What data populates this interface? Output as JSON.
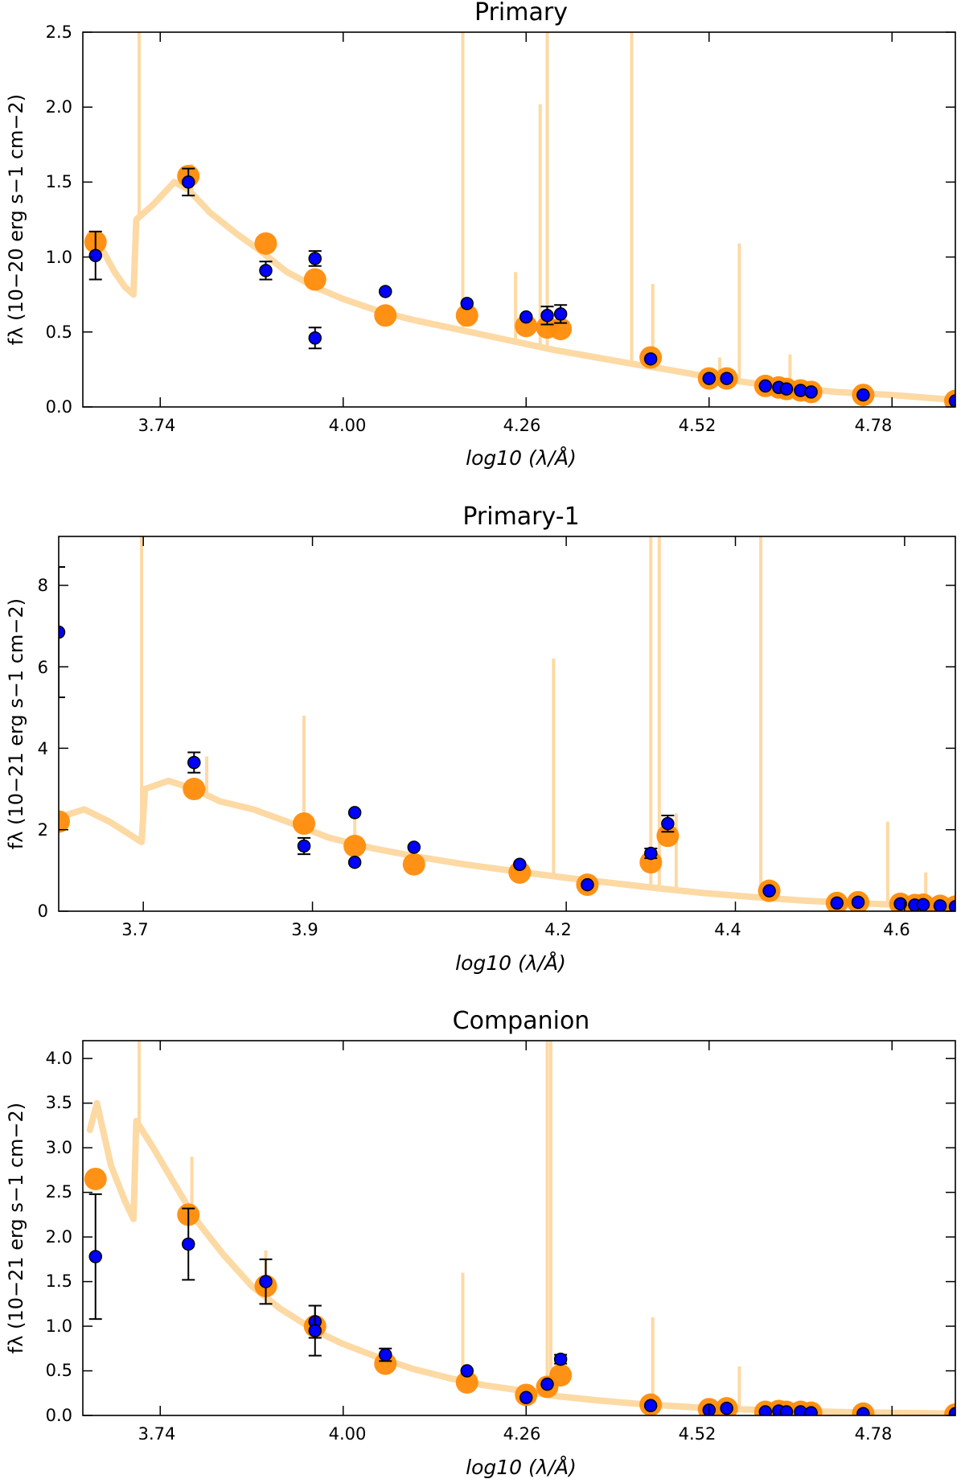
{
  "chart_data": [
    {
      "type": "scatter",
      "title": "Primary",
      "xlabel": "log10 (λ/Å)",
      "ylabel": "fλ (10−20 erg s−1 cm−2)",
      "x_tick_labels": [
        "3.74",
        "4.00",
        "4.26",
        "4.52",
        "4.78"
      ],
      "y_tick_labels": [
        "0.0",
        "0.5",
        "1.0",
        "1.5",
        "2.0",
        "2.5"
      ],
      "xlim": [
        3.63,
        4.87
      ],
      "ylim": [
        0,
        2.5
      ],
      "colors": {
        "model": "#fdd9a4",
        "model_phot": "#ff8c0a",
        "observed": "#0000ff",
        "errorbar": "#000000"
      },
      "model_spectrum": {
        "base": [
          [
            3.64,
            1.15
          ],
          [
            3.66,
            1.03
          ],
          [
            3.675,
            0.9
          ],
          [
            3.69,
            0.8
          ],
          [
            3.702,
            0.75
          ],
          [
            3.706,
            1.25
          ],
          [
            3.73,
            1.35
          ],
          [
            3.76,
            1.5
          ],
          [
            3.78,
            1.45
          ],
          [
            3.81,
            1.3
          ],
          [
            3.85,
            1.15
          ],
          [
            3.88,
            1.05
          ],
          [
            3.92,
            0.9
          ],
          [
            3.96,
            0.8
          ],
          [
            4.0,
            0.72
          ],
          [
            4.05,
            0.64
          ],
          [
            4.1,
            0.58
          ],
          [
            4.15,
            0.53
          ],
          [
            4.2,
            0.48
          ],
          [
            4.26,
            0.42
          ],
          [
            4.3,
            0.38
          ],
          [
            4.36,
            0.33
          ],
          [
            4.42,
            0.28
          ],
          [
            4.46,
            0.25
          ],
          [
            4.52,
            0.2
          ],
          [
            4.58,
            0.16
          ],
          [
            4.64,
            0.13
          ],
          [
            4.7,
            0.1
          ],
          [
            4.78,
            0.08
          ],
          [
            4.86,
            0.05
          ]
        ],
        "lines": [
          [
            3.71,
            2.5
          ],
          [
            3.785,
            1.62
          ],
          [
            4.17,
            2.5
          ],
          [
            4.245,
            0.9
          ],
          [
            4.28,
            2.02
          ],
          [
            4.29,
            2.5
          ],
          [
            4.41,
            2.5
          ],
          [
            4.44,
            0.82
          ],
          [
            4.535,
            0.33
          ],
          [
            4.563,
            1.09
          ],
          [
            4.635,
            0.35
          ]
        ]
      },
      "model_points": [
        {
          "x": 3.648,
          "y": 1.1
        },
        {
          "x": 3.78,
          "y": 1.54
        },
        {
          "x": 3.89,
          "y": 1.09
        },
        {
          "x": 3.96,
          "y": 0.85
        },
        {
          "x": 4.06,
          "y": 0.61
        },
        {
          "x": 4.176,
          "y": 0.61
        },
        {
          "x": 4.26,
          "y": 0.54
        },
        {
          "x": 4.29,
          "y": 0.53
        },
        {
          "x": 4.309,
          "y": 0.52
        },
        {
          "x": 4.437,
          "y": 0.33
        },
        {
          "x": 4.52,
          "y": 0.19
        },
        {
          "x": 4.545,
          "y": 0.19
        },
        {
          "x": 4.6,
          "y": 0.14
        },
        {
          "x": 4.619,
          "y": 0.13
        },
        {
          "x": 4.63,
          "y": 0.12
        },
        {
          "x": 4.65,
          "y": 0.11
        },
        {
          "x": 4.665,
          "y": 0.1
        },
        {
          "x": 4.739,
          "y": 0.08
        },
        {
          "x": 4.87,
          "y": 0.04
        }
      ],
      "observed_points": [
        {
          "x": 3.648,
          "y": 1.01,
          "err": 0.16
        },
        {
          "x": 3.78,
          "y": 1.5,
          "err": 0.09
        },
        {
          "x": 3.89,
          "y": 0.91,
          "err": 0.06
        },
        {
          "x": 3.96,
          "y": 0.99,
          "err": 0.05
        },
        {
          "x": 3.96,
          "y": 0.46,
          "err": 0.07
        },
        {
          "x": 4.06,
          "y": 0.77
        },
        {
          "x": 4.176,
          "y": 0.69
        },
        {
          "x": 4.26,
          "y": 0.6
        },
        {
          "x": 4.29,
          "y": 0.61,
          "err": 0.06
        },
        {
          "x": 4.309,
          "y": 0.62,
          "err": 0.06
        },
        {
          "x": 4.437,
          "y": 0.32
        },
        {
          "x": 4.52,
          "y": 0.19
        },
        {
          "x": 4.545,
          "y": 0.19
        },
        {
          "x": 4.6,
          "y": 0.14
        },
        {
          "x": 4.619,
          "y": 0.13
        },
        {
          "x": 4.63,
          "y": 0.12
        },
        {
          "x": 4.65,
          "y": 0.11
        },
        {
          "x": 4.665,
          "y": 0.1
        },
        {
          "x": 4.739,
          "y": 0.08
        },
        {
          "x": 4.87,
          "y": 0.04
        }
      ]
    },
    {
      "type": "scatter",
      "title": "Primary-1",
      "xlabel": "log10 (λ/Å)",
      "ylabel": "fλ (10−21 erg s−1 cm−2)",
      "x_tick_labels": [
        "3.7",
        "3.9",
        "4.2",
        "4.4",
        "4.6"
      ],
      "y_tick_labels": [
        "0",
        "2",
        "4",
        "6",
        "8"
      ],
      "xlim": [
        3.6,
        4.66
      ],
      "ylim": [
        0,
        9.2
      ],
      "colors": {
        "model": "#fdd9a4",
        "model_phot": "#ff8c0a",
        "observed": "#0000ff",
        "errorbar": "#000000"
      },
      "model_spectrum": {
        "base": [
          [
            3.6,
            2.3
          ],
          [
            3.63,
            2.5
          ],
          [
            3.66,
            2.2
          ],
          [
            3.69,
            1.8
          ],
          [
            3.698,
            1.7
          ],
          [
            3.702,
            3.0
          ],
          [
            3.73,
            3.2
          ],
          [
            3.76,
            3.0
          ],
          [
            3.79,
            2.7
          ],
          [
            3.83,
            2.5
          ],
          [
            3.87,
            2.2
          ],
          [
            3.92,
            1.8
          ],
          [
            3.97,
            1.55
          ],
          [
            4.02,
            1.35
          ],
          [
            4.08,
            1.15
          ],
          [
            4.14,
            0.98
          ],
          [
            4.2,
            0.82
          ],
          [
            4.26,
            0.68
          ],
          [
            4.31,
            0.56
          ],
          [
            4.36,
            0.45
          ],
          [
            4.42,
            0.35
          ],
          [
            4.48,
            0.26
          ],
          [
            4.54,
            0.2
          ],
          [
            4.6,
            0.15
          ],
          [
            4.66,
            0.1
          ]
        ],
        "lines": [
          [
            3.698,
            9.2
          ],
          [
            3.775,
            3.8
          ],
          [
            3.89,
            4.8
          ],
          [
            3.95,
            2.5
          ],
          [
            4.185,
            6.2
          ],
          [
            4.3,
            9.2
          ],
          [
            4.31,
            9.2
          ],
          [
            4.33,
            2.4
          ],
          [
            4.43,
            9.2
          ],
          [
            4.58,
            2.2
          ],
          [
            4.625,
            0.95
          ]
        ]
      },
      "model_points": [
        {
          "x": 3.6,
          "y": 2.2
        },
        {
          "x": 3.76,
          "y": 3.0
        },
        {
          "x": 3.89,
          "y": 2.15
        },
        {
          "x": 3.95,
          "y": 1.6
        },
        {
          "x": 4.02,
          "y": 1.15
        },
        {
          "x": 4.145,
          "y": 0.95
        },
        {
          "x": 4.225,
          "y": 0.65
        },
        {
          "x": 4.3,
          "y": 1.2
        },
        {
          "x": 4.32,
          "y": 1.85
        },
        {
          "x": 4.44,
          "y": 0.5
        },
        {
          "x": 4.52,
          "y": 0.2
        },
        {
          "x": 4.545,
          "y": 0.22
        },
        {
          "x": 4.595,
          "y": 0.18
        },
        {
          "x": 4.612,
          "y": 0.15
        },
        {
          "x": 4.622,
          "y": 0.16
        },
        {
          "x": 4.642,
          "y": 0.13
        },
        {
          "x": 4.66,
          "y": 0.11
        }
      ],
      "observed_points": [
        {
          "x": 3.6,
          "y": 6.85,
          "err": 1.6
        },
        {
          "x": 3.76,
          "y": 3.65,
          "err": 0.25
        },
        {
          "x": 3.89,
          "y": 1.6,
          "err": 0.2
        },
        {
          "x": 3.95,
          "y": 2.42
        },
        {
          "x": 3.95,
          "y": 1.2
        },
        {
          "x": 4.02,
          "y": 1.57
        },
        {
          "x": 4.145,
          "y": 1.15
        },
        {
          "x": 4.225,
          "y": 0.65
        },
        {
          "x": 4.3,
          "y": 1.42,
          "err": 0.12
        },
        {
          "x": 4.32,
          "y": 2.15,
          "err": 0.2
        },
        {
          "x": 4.44,
          "y": 0.5
        },
        {
          "x": 4.52,
          "y": 0.2
        },
        {
          "x": 4.545,
          "y": 0.22
        },
        {
          "x": 4.595,
          "y": 0.18
        },
        {
          "x": 4.612,
          "y": 0.15
        },
        {
          "x": 4.622,
          "y": 0.16
        },
        {
          "x": 4.642,
          "y": 0.13
        },
        {
          "x": 4.66,
          "y": 0.11
        }
      ]
    },
    {
      "type": "scatter",
      "title": "Companion",
      "xlabel": "log10 (λ/Å)",
      "ylabel": "fλ (10−21 erg s−1 cm−2)",
      "x_tick_labels": [
        "3.74",
        "4.00",
        "4.26",
        "4.52",
        "4.78"
      ],
      "y_tick_labels": [
        "0.0",
        "0.5",
        "1.0",
        "1.5",
        "2.0",
        "2.5",
        "3.0",
        "3.5",
        "4.0"
      ],
      "xlim": [
        3.63,
        4.87
      ],
      "ylim": [
        0,
        4.2
      ],
      "colors": {
        "model": "#fdd9a4",
        "model_phot": "#ff8c0a",
        "observed": "#0000ff",
        "errorbar": "#000000"
      },
      "model_spectrum": {
        "base": [
          [
            3.64,
            3.2
          ],
          [
            3.65,
            3.5
          ],
          [
            3.67,
            2.8
          ],
          [
            3.69,
            2.4
          ],
          [
            3.702,
            2.2
          ],
          [
            3.706,
            3.3
          ],
          [
            3.73,
            3.0
          ],
          [
            3.76,
            2.6
          ],
          [
            3.79,
            2.2
          ],
          [
            3.83,
            1.8
          ],
          [
            3.87,
            1.45
          ],
          [
            3.91,
            1.2
          ],
          [
            3.96,
            0.95
          ],
          [
            4.0,
            0.8
          ],
          [
            4.05,
            0.65
          ],
          [
            4.1,
            0.52
          ],
          [
            4.15,
            0.42
          ],
          [
            4.2,
            0.34
          ],
          [
            4.26,
            0.27
          ],
          [
            4.3,
            0.22
          ],
          [
            4.36,
            0.17
          ],
          [
            4.42,
            0.13
          ],
          [
            4.48,
            0.1
          ],
          [
            4.52,
            0.08
          ],
          [
            4.6,
            0.06
          ],
          [
            4.7,
            0.04
          ],
          [
            4.78,
            0.03
          ],
          [
            4.87,
            0.02
          ]
        ],
        "lines": [
          [
            3.71,
            4.2
          ],
          [
            3.785,
            2.9
          ],
          [
            3.89,
            1.85
          ],
          [
            4.17,
            1.6
          ],
          [
            4.29,
            4.2
          ],
          [
            4.295,
            4.2
          ],
          [
            4.44,
            1.1
          ],
          [
            4.563,
            0.55
          ]
        ]
      },
      "model_points": [
        {
          "x": 3.648,
          "y": 2.65
        },
        {
          "x": 3.78,
          "y": 2.25
        },
        {
          "x": 3.89,
          "y": 1.45
        },
        {
          "x": 3.96,
          "y": 1.0
        },
        {
          "x": 4.06,
          "y": 0.58
        },
        {
          "x": 4.176,
          "y": 0.37
        },
        {
          "x": 4.26,
          "y": 0.23
        },
        {
          "x": 4.29,
          "y": 0.32
        },
        {
          "x": 4.309,
          "y": 0.45
        },
        {
          "x": 4.437,
          "y": 0.12
        },
        {
          "x": 4.52,
          "y": 0.07
        },
        {
          "x": 4.545,
          "y": 0.08
        },
        {
          "x": 4.6,
          "y": 0.04
        },
        {
          "x": 4.619,
          "y": 0.05
        },
        {
          "x": 4.63,
          "y": 0.04
        },
        {
          "x": 4.65,
          "y": 0.04
        },
        {
          "x": 4.665,
          "y": 0.03
        },
        {
          "x": 4.739,
          "y": 0.02
        },
        {
          "x": 4.87,
          "y": 0.01
        }
      ],
      "observed_points": [
        {
          "x": 3.648,
          "y": 1.78,
          "err": 0.7
        },
        {
          "x": 3.78,
          "y": 1.92,
          "err": 0.4
        },
        {
          "x": 3.89,
          "y": 1.5,
          "err": 0.25
        },
        {
          "x": 3.96,
          "y": 1.05,
          "err": 0.18
        },
        {
          "x": 3.96,
          "y": 0.95,
          "err": 0.28
        },
        {
          "x": 4.06,
          "y": 0.68,
          "err": 0.07
        },
        {
          "x": 4.176,
          "y": 0.5
        },
        {
          "x": 4.26,
          "y": 0.2
        },
        {
          "x": 4.29,
          "y": 0.35
        },
        {
          "x": 4.309,
          "y": 0.63,
          "err": 0.05
        },
        {
          "x": 4.437,
          "y": 0.11
        },
        {
          "x": 4.52,
          "y": 0.06
        },
        {
          "x": 4.545,
          "y": 0.08
        },
        {
          "x": 4.6,
          "y": 0.04
        },
        {
          "x": 4.619,
          "y": 0.05
        },
        {
          "x": 4.63,
          "y": 0.04
        },
        {
          "x": 4.65,
          "y": 0.04
        },
        {
          "x": 4.665,
          "y": 0.03
        },
        {
          "x": 4.739,
          "y": 0.02
        },
        {
          "x": 4.87,
          "y": 0.02
        }
      ]
    }
  ]
}
